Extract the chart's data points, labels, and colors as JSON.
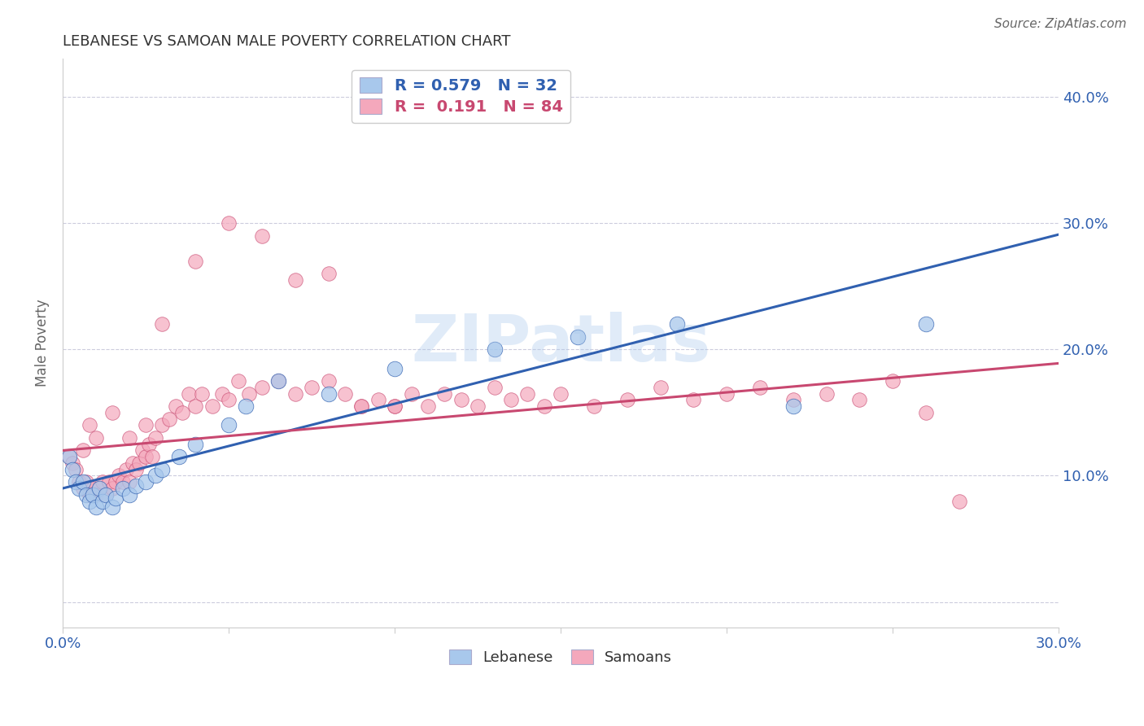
{
  "title": "LEBANESE VS SAMOAN MALE POVERTY CORRELATION CHART",
  "source": "Source: ZipAtlas.com",
  "ylabel_left": "Male Poverty",
  "xlim": [
    0.0,
    0.3
  ],
  "ylim": [
    -0.02,
    0.43
  ],
  "lebanese_R": 0.579,
  "lebanese_N": 32,
  "samoan_R": 0.191,
  "samoan_N": 84,
  "legend_entries": [
    "Lebanese",
    "Samoans"
  ],
  "blue_color": "#A8C8EC",
  "pink_color": "#F4A8BC",
  "blue_line_color": "#3060B0",
  "pink_line_color": "#C84870",
  "watermark_text": "ZIPatlas",
  "background_color": "#FFFFFF",
  "grid_color": "#CCCCDD",
  "blue_intercept": 0.09,
  "blue_slope": 0.67,
  "pink_intercept": 0.12,
  "pink_slope": 0.23,
  "lebanese_x": [
    0.002,
    0.003,
    0.004,
    0.005,
    0.006,
    0.007,
    0.008,
    0.009,
    0.01,
    0.011,
    0.012,
    0.013,
    0.015,
    0.016,
    0.018,
    0.02,
    0.022,
    0.025,
    0.028,
    0.03,
    0.035,
    0.04,
    0.05,
    0.055,
    0.065,
    0.08,
    0.1,
    0.13,
    0.155,
    0.185,
    0.22,
    0.26
  ],
  "lebanese_y": [
    0.115,
    0.105,
    0.095,
    0.09,
    0.095,
    0.085,
    0.08,
    0.085,
    0.075,
    0.09,
    0.08,
    0.085,
    0.075,
    0.082,
    0.09,
    0.085,
    0.092,
    0.095,
    0.1,
    0.105,
    0.115,
    0.125,
    0.14,
    0.155,
    0.175,
    0.165,
    0.185,
    0.2,
    0.21,
    0.22,
    0.155,
    0.22
  ],
  "samoan_x": [
    0.002,
    0.003,
    0.004,
    0.005,
    0.006,
    0.007,
    0.008,
    0.009,
    0.01,
    0.011,
    0.012,
    0.013,
    0.014,
    0.015,
    0.016,
    0.017,
    0.018,
    0.019,
    0.02,
    0.021,
    0.022,
    0.023,
    0.024,
    0.025,
    0.026,
    0.027,
    0.028,
    0.03,
    0.032,
    0.034,
    0.036,
    0.038,
    0.04,
    0.042,
    0.045,
    0.048,
    0.05,
    0.053,
    0.056,
    0.06,
    0.065,
    0.07,
    0.075,
    0.08,
    0.085,
    0.09,
    0.095,
    0.1,
    0.105,
    0.11,
    0.115,
    0.12,
    0.125,
    0.13,
    0.135,
    0.14,
    0.145,
    0.15,
    0.16,
    0.17,
    0.18,
    0.19,
    0.2,
    0.21,
    0.22,
    0.23,
    0.24,
    0.25,
    0.26,
    0.27,
    0.006,
    0.008,
    0.01,
    0.015,
    0.02,
    0.025,
    0.03,
    0.04,
    0.05,
    0.06,
    0.07,
    0.08,
    0.09,
    0.1
  ],
  "samoan_y": [
    0.115,
    0.11,
    0.105,
    0.095,
    0.09,
    0.095,
    0.085,
    0.09,
    0.085,
    0.09,
    0.095,
    0.085,
    0.095,
    0.09,
    0.095,
    0.1,
    0.095,
    0.105,
    0.095,
    0.11,
    0.105,
    0.11,
    0.12,
    0.115,
    0.125,
    0.115,
    0.13,
    0.14,
    0.145,
    0.155,
    0.15,
    0.165,
    0.155,
    0.165,
    0.155,
    0.165,
    0.16,
    0.175,
    0.165,
    0.17,
    0.175,
    0.165,
    0.17,
    0.175,
    0.165,
    0.155,
    0.16,
    0.155,
    0.165,
    0.155,
    0.165,
    0.16,
    0.155,
    0.17,
    0.16,
    0.165,
    0.155,
    0.165,
    0.155,
    0.16,
    0.17,
    0.16,
    0.165,
    0.17,
    0.16,
    0.165,
    0.16,
    0.175,
    0.15,
    0.08,
    0.12,
    0.14,
    0.13,
    0.15,
    0.13,
    0.14,
    0.22,
    0.27,
    0.3,
    0.29,
    0.255,
    0.26,
    0.155,
    0.155
  ]
}
